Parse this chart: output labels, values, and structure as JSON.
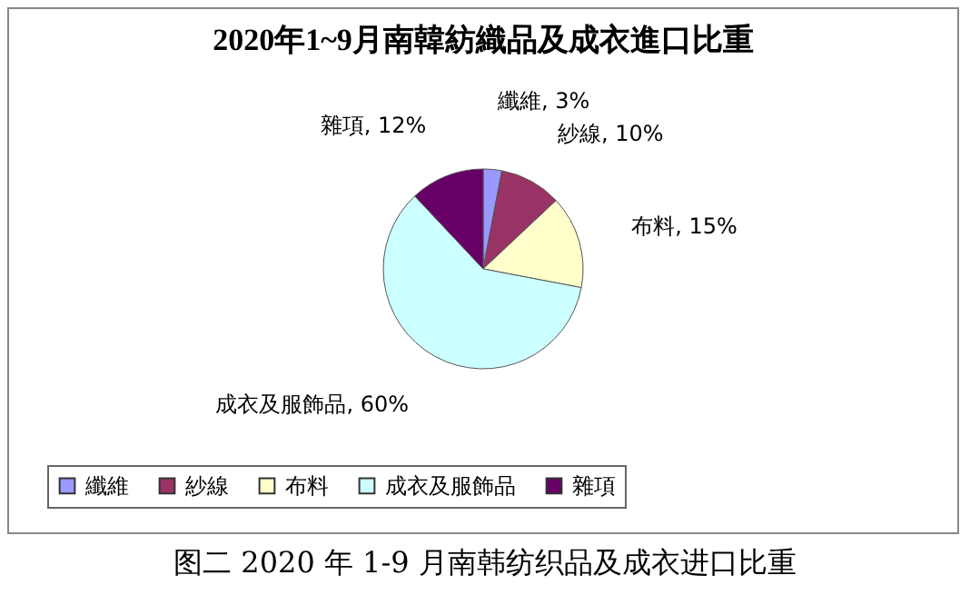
{
  "chart_data": {
    "type": "pie",
    "title": "2020年1~9月南韓紡織品及成衣進口比重",
    "categories": [
      "纖維",
      "紗線",
      "布料",
      "成衣及服飾品",
      "雜項"
    ],
    "values": [
      3,
      10,
      15,
      60,
      12
    ],
    "colors": [
      "#9999ff",
      "#993366",
      "#ffffcc",
      "#ccffff",
      "#660066"
    ],
    "value_labels": [
      "纖維, 3%",
      "紗線, 10%",
      "布料, 15%",
      "成衣及服飾品, 60%",
      "雜項, 12%"
    ],
    "legend": "bottom",
    "annotations": [
      "图二 2020 年 1-9 月南韩纺织品及成衣进口比重"
    ]
  }
}
